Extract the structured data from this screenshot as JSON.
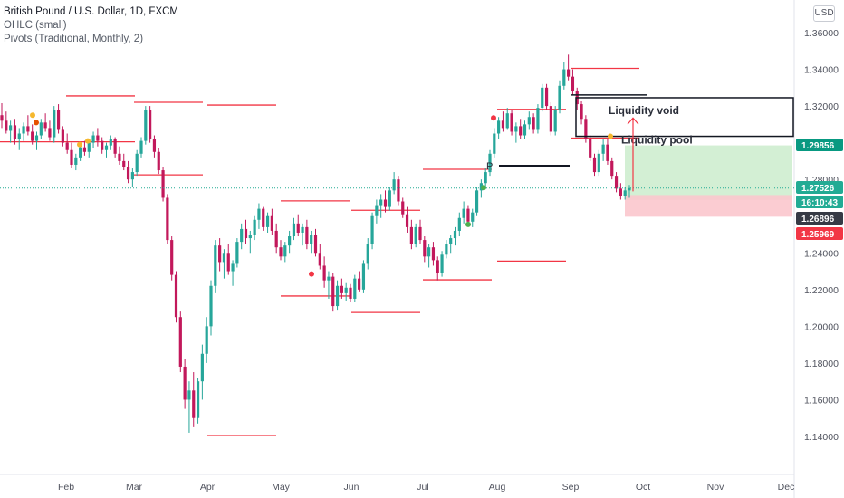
{
  "legend": {
    "symbol_line": "British Pound / U.S. Dollar, 1D, FXCM",
    "ohlc_line": "OHLC (small)",
    "pivots_line": "Pivots (Traditional, Monthly, 2)"
  },
  "currency_button": "USD",
  "colors": {
    "up": "#26a69a",
    "down": "#c2185b",
    "pivot": "#f23645",
    "target_zone": "#c8ebc9",
    "stop_zone": "#fbc7cd",
    "price_green": "#089981",
    "price_red": "#f23645",
    "countdown": "#22ab94",
    "dark_tag": "#363a45"
  },
  "chart_data": {
    "type": "candlestick",
    "symbol": "GBPUSD",
    "timeframe": "1D",
    "x_axis": {
      "ticks": [
        "Feb",
        "Mar",
        "Apr",
        "May",
        "Jun",
        "Jul",
        "Aug",
        "Sep",
        "Oct",
        "Nov",
        "Dec"
      ]
    },
    "y_axis": {
      "ticks": [
        "1.36000",
        "1.34000",
        "1.32000",
        "1.30000",
        "1.28000",
        "1.26000",
        "1.24000",
        "1.22000",
        "1.20000",
        "1.18000",
        "1.16000",
        "1.14000"
      ],
      "range": [
        1.125,
        1.37
      ]
    },
    "price_tags": [
      {
        "label": "1.29856",
        "value": 1.29856,
        "color": "#089981"
      },
      {
        "label": "1.27526",
        "value": 1.27526,
        "color": "#22ab94"
      },
      {
        "label": "16:10:43",
        "value": 1.2685,
        "color": "#22ab94"
      },
      {
        "label": "1.26896",
        "value": 1.26896,
        "color": "#363a45"
      },
      {
        "label": "1.25969",
        "value": 1.25969,
        "color": "#f23645"
      }
    ],
    "current_price": 1.27526,
    "annotations": [
      {
        "text": "Liquidity void",
        "price": 1.3175
      },
      {
        "text": "Liquidity pool",
        "price": 1.3015
      },
      {
        "text": "P",
        "price": 1.288
      }
    ],
    "pivot_levels": [
      {
        "start": "Jan",
        "price": 1.3005
      },
      {
        "start": "Feb",
        "price": 1.3255
      },
      {
        "start": "Feb",
        "price": 1.3005
      },
      {
        "start": "Mar",
        "price": 1.322
      },
      {
        "start": "Mar",
        "price": 1.2825
      },
      {
        "start": "Apr",
        "price": 1.3205
      },
      {
        "start": "Apr",
        "price": 1.1405
      },
      {
        "start": "May",
        "price": 1.2683
      },
      {
        "start": "May",
        "price": 1.2165
      },
      {
        "start": "Jun",
        "price": 1.2632
      },
      {
        "start": "Jun",
        "price": 1.2075
      },
      {
        "start": "Jul",
        "price": 1.2855
      },
      {
        "start": "Jul",
        "price": 1.2253
      },
      {
        "start": "Aug",
        "price": 1.3182
      },
      {
        "start": "Aug",
        "price": 1.2355
      },
      {
        "start": "Sep",
        "price": 1.3405
      },
      {
        "start": "Sep",
        "price": 1.3025
      }
    ],
    "candles": [
      [
        1.315,
        1.3215,
        1.308,
        1.312
      ],
      [
        1.312,
        1.317,
        1.305,
        1.3065
      ],
      [
        1.3065,
        1.312,
        1.3,
        1.3095
      ],
      [
        1.3095,
        1.313,
        1.299,
        1.302
      ],
      [
        1.302,
        1.308,
        1.296,
        1.305
      ],
      [
        1.305,
        1.311,
        1.301,
        1.309
      ],
      [
        1.309,
        1.315,
        1.304,
        1.306
      ],
      [
        1.306,
        1.31,
        1.299,
        1.301
      ],
      [
        1.301,
        1.306,
        1.296,
        1.304
      ],
      [
        1.304,
        1.313,
        1.302,
        1.311
      ],
      [
        1.311,
        1.316,
        1.306,
        1.308
      ],
      [
        1.308,
        1.312,
        1.301,
        1.303
      ],
      [
        1.303,
        1.32,
        1.3,
        1.318
      ],
      [
        1.318,
        1.321,
        1.305,
        1.307
      ],
      [
        1.307,
        1.309,
        1.298,
        1.3
      ],
      [
        1.3,
        1.305,
        1.294,
        1.296
      ],
      [
        1.296,
        1.3,
        1.286,
        1.288
      ],
      [
        1.288,
        1.294,
        1.285,
        1.292
      ],
      [
        1.292,
        1.299,
        1.29,
        1.2975
      ],
      [
        1.2975,
        1.301,
        1.293,
        1.295
      ],
      [
        1.295,
        1.302,
        1.292,
        1.3
      ],
      [
        1.3,
        1.306,
        1.297,
        1.304
      ],
      [
        1.304,
        1.308,
        1.298,
        1.301
      ],
      [
        1.301,
        1.303,
        1.294,
        1.296
      ],
      [
        1.296,
        1.3,
        1.292,
        1.2985
      ],
      [
        1.2985,
        1.304,
        1.296,
        1.302
      ],
      [
        1.302,
        1.303,
        1.292,
        1.294
      ],
      [
        1.294,
        1.298,
        1.288,
        1.29
      ],
      [
        1.29,
        1.294,
        1.285,
        1.287
      ],
      [
        1.287,
        1.29,
        1.278,
        1.28
      ],
      [
        1.28,
        1.286,
        1.276,
        1.284
      ],
      [
        1.284,
        1.296,
        1.282,
        1.294
      ],
      [
        1.294,
        1.303,
        1.292,
        1.301
      ],
      [
        1.301,
        1.32,
        1.299,
        1.318
      ],
      [
        1.318,
        1.32,
        1.3,
        1.302
      ],
      [
        1.302,
        1.304,
        1.292,
        1.295
      ],
      [
        1.295,
        1.297,
        1.283,
        1.285
      ],
      [
        1.285,
        1.287,
        1.268,
        1.27
      ],
      [
        1.27,
        1.272,
        1.245,
        1.247
      ],
      [
        1.247,
        1.249,
        1.225,
        1.228
      ],
      [
        1.228,
        1.23,
        1.202,
        1.205
      ],
      [
        1.205,
        1.208,
        1.175,
        1.178
      ],
      [
        1.178,
        1.182,
        1.155,
        1.16
      ],
      [
        1.16,
        1.17,
        1.142,
        1.165
      ],
      [
        1.165,
        1.175,
        1.145,
        1.15
      ],
      [
        1.15,
        1.172,
        1.147,
        1.17
      ],
      [
        1.17,
        1.19,
        1.16,
        1.185
      ],
      [
        1.185,
        1.205,
        1.18,
        1.2
      ],
      [
        1.2,
        1.225,
        1.195,
        1.222
      ],
      [
        1.222,
        1.247,
        1.218,
        1.244
      ],
      [
        1.244,
        1.248,
        1.23,
        1.235
      ],
      [
        1.235,
        1.242,
        1.226,
        1.24
      ],
      [
        1.24,
        1.245,
        1.228,
        1.23
      ],
      [
        1.23,
        1.236,
        1.222,
        1.234
      ],
      [
        1.234,
        1.248,
        1.232,
        1.246
      ],
      [
        1.246,
        1.256,
        1.242,
        1.253
      ],
      [
        1.253,
        1.258,
        1.245,
        1.248
      ],
      [
        1.248,
        1.252,
        1.24,
        1.25
      ],
      [
        1.25,
        1.26,
        1.247,
        1.258
      ],
      [
        1.258,
        1.267,
        1.253,
        1.264
      ],
      [
        1.264,
        1.265,
        1.252,
        1.254
      ],
      [
        1.254,
        1.262,
        1.251,
        1.26
      ],
      [
        1.26,
        1.264,
        1.25,
        1.252
      ],
      [
        1.252,
        1.256,
        1.24,
        1.243
      ],
      [
        1.243,
        1.247,
        1.236,
        1.238
      ],
      [
        1.238,
        1.246,
        1.235,
        1.244
      ],
      [
        1.244,
        1.252,
        1.24,
        1.249
      ],
      [
        1.249,
        1.259,
        1.247,
        1.256
      ],
      [
        1.256,
        1.261,
        1.249,
        1.251
      ],
      [
        1.251,
        1.256,
        1.244,
        1.254
      ],
      [
        1.254,
        1.258,
        1.242,
        1.245
      ],
      [
        1.245,
        1.252,
        1.24,
        1.25
      ],
      [
        1.25,
        1.253,
        1.238,
        1.24
      ],
      [
        1.24,
        1.245,
        1.231,
        1.233
      ],
      [
        1.233,
        1.238,
        1.221,
        1.225
      ],
      [
        1.225,
        1.23,
        1.215,
        1.227
      ],
      [
        1.227,
        1.229,
        1.208,
        1.211
      ],
      [
        1.211,
        1.225,
        1.209,
        1.222
      ],
      [
        1.222,
        1.226,
        1.215,
        1.218
      ],
      [
        1.218,
        1.224,
        1.214,
        1.221
      ],
      [
        1.221,
        1.223,
        1.213,
        1.215
      ],
      [
        1.215,
        1.228,
        1.213,
        1.226
      ],
      [
        1.226,
        1.23,
        1.219,
        1.22
      ],
      [
        1.22,
        1.236,
        1.218,
        1.234
      ],
      [
        1.234,
        1.248,
        1.231,
        1.245
      ],
      [
        1.245,
        1.262,
        1.242,
        1.26
      ],
      [
        1.26,
        1.269,
        1.256,
        1.266
      ],
      [
        1.266,
        1.272,
        1.259,
        1.269
      ],
      [
        1.269,
        1.274,
        1.262,
        1.265
      ],
      [
        1.265,
        1.276,
        1.263,
        1.274
      ],
      [
        1.274,
        1.284,
        1.272,
        1.28
      ],
      [
        1.28,
        1.282,
        1.266,
        1.268
      ],
      [
        1.268,
        1.27,
        1.259,
        1.261
      ],
      [
        1.261,
        1.265,
        1.251,
        1.254
      ],
      [
        1.254,
        1.258,
        1.242,
        1.245
      ],
      [
        1.245,
        1.256,
        1.243,
        1.254
      ],
      [
        1.254,
        1.258,
        1.245,
        1.247
      ],
      [
        1.247,
        1.249,
        1.235,
        1.238
      ],
      [
        1.238,
        1.245,
        1.232,
        1.243
      ],
      [
        1.243,
        1.246,
        1.233,
        1.236
      ],
      [
        1.236,
        1.238,
        1.225,
        1.229
      ],
      [
        1.229,
        1.241,
        1.227,
        1.239
      ],
      [
        1.239,
        1.247,
        1.237,
        1.245
      ],
      [
        1.245,
        1.25,
        1.24,
        1.248
      ],
      [
        1.248,
        1.254,
        1.244,
        1.252
      ],
      [
        1.252,
        1.262,
        1.249,
        1.259
      ],
      [
        1.259,
        1.268,
        1.256,
        1.264
      ],
      [
        1.264,
        1.266,
        1.255,
        1.257
      ],
      [
        1.257,
        1.264,
        1.254,
        1.262
      ],
      [
        1.262,
        1.276,
        1.26,
        1.274
      ],
      [
        1.274,
        1.28,
        1.27,
        1.278
      ],
      [
        1.278,
        1.286,
        1.275,
        1.284
      ],
      [
        1.284,
        1.296,
        1.282,
        1.294
      ],
      [
        1.294,
        1.308,
        1.292,
        1.305
      ],
      [
        1.305,
        1.314,
        1.302,
        1.312
      ],
      [
        1.312,
        1.317,
        1.306,
        1.308
      ],
      [
        1.308,
        1.319,
        1.307,
        1.316
      ],
      [
        1.316,
        1.318,
        1.304,
        1.306
      ],
      [
        1.306,
        1.311,
        1.3,
        1.309
      ],
      [
        1.309,
        1.313,
        1.302,
        1.304
      ],
      [
        1.304,
        1.312,
        1.302,
        1.31
      ],
      [
        1.31,
        1.317,
        1.307,
        1.314
      ],
      [
        1.314,
        1.316,
        1.305,
        1.307
      ],
      [
        1.307,
        1.321,
        1.305,
        1.319
      ],
      [
        1.319,
        1.332,
        1.317,
        1.33
      ],
      [
        1.33,
        1.332,
        1.318,
        1.32
      ],
      [
        1.32,
        1.322,
        1.304,
        1.306
      ],
      [
        1.306,
        1.32,
        1.304,
        1.318
      ],
      [
        1.318,
        1.334,
        1.316,
        1.331
      ],
      [
        1.331,
        1.344,
        1.329,
        1.34
      ],
      [
        1.34,
        1.348,
        1.334,
        1.336
      ],
      [
        1.336,
        1.34,
        1.326,
        1.328
      ],
      [
        1.328,
        1.33,
        1.318,
        1.321
      ],
      [
        1.321,
        1.323,
        1.31,
        1.313
      ],
      [
        1.313,
        1.315,
        1.3,
        1.302
      ],
      [
        1.302,
        1.304,
        1.29,
        1.292
      ],
      [
        1.292,
        1.294,
        1.282,
        1.284
      ],
      [
        1.284,
        1.296,
        1.282,
        1.294
      ],
      [
        1.294,
        1.302,
        1.29,
        1.299
      ],
      [
        1.299,
        1.302,
        1.288,
        1.29
      ],
      [
        1.29,
        1.292,
        1.28,
        1.282
      ],
      [
        1.282,
        1.284,
        1.273,
        1.275
      ],
      [
        1.275,
        1.278,
        1.269,
        1.271
      ],
      [
        1.271,
        1.276,
        1.269,
        1.274
      ],
      [
        1.274,
        1.277,
        1.27,
        1.2753
      ]
    ]
  }
}
